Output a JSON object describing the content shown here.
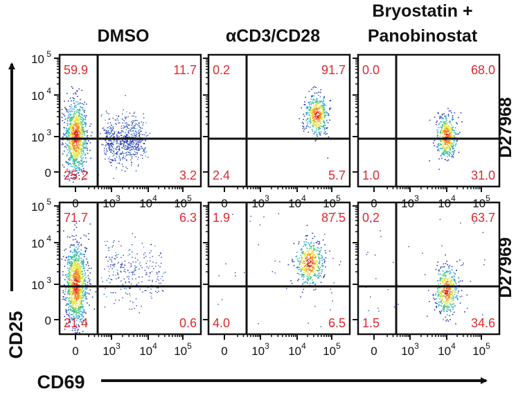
{
  "chart_data": {
    "type": "scatter",
    "plot_kind": "flow cytometry density dot plot grid",
    "xlabel": "CD69",
    "ylabel": "CD25",
    "axis_scale": "biexponential",
    "x_ticks": [
      "0",
      "10",
      "10",
      "10"
    ],
    "x_tick_exponents": [
      "",
      "3",
      "4",
      "5"
    ],
    "y_ticks": [
      "0",
      "10",
      "10",
      "10"
    ],
    "y_tick_exponents": [
      "",
      "3",
      "4",
      "5"
    ],
    "grid": false,
    "legend": "none",
    "columns": [
      {
        "label_lines": [
          "DMSO"
        ]
      },
      {
        "label_lines": [
          "αCD3/CD28"
        ]
      },
      {
        "label_lines": [
          "Bryostatin +",
          "Panobinostat"
        ]
      }
    ],
    "rows": [
      {
        "label": "D27968"
      },
      {
        "label": "D27969"
      }
    ],
    "quadrant_order": [
      "upper-left",
      "upper-right",
      "lower-left",
      "lower-right"
    ],
    "panels": [
      {
        "row": 0,
        "col": 0,
        "quadrants": [
          "59.9",
          "11.7",
          "25.2",
          "3.2"
        ]
      },
      {
        "row": 0,
        "col": 1,
        "quadrants": [
          "0.2",
          "91.7",
          "2.4",
          "5.7"
        ]
      },
      {
        "row": 0,
        "col": 2,
        "quadrants": [
          "0.0",
          "68.0",
          "1.0",
          "31.0"
        ]
      },
      {
        "row": 1,
        "col": 0,
        "quadrants": [
          "71.7",
          "6.3",
          "21.4",
          "0.6"
        ]
      },
      {
        "row": 1,
        "col": 1,
        "quadrants": [
          "1.9",
          "87.5",
          "4.0",
          "6.5"
        ]
      },
      {
        "row": 1,
        "col": 2,
        "quadrants": [
          "0.2",
          "63.7",
          "1.5",
          "34.6"
        ]
      }
    ],
    "colors": {
      "quadrant_text": "#e0282e",
      "axes": "#111111",
      "density_scale": [
        "#2b3cb5",
        "#28a3dc",
        "#3cc48a",
        "#e8e23a",
        "#f08a22",
        "#e02b1f"
      ]
    }
  }
}
